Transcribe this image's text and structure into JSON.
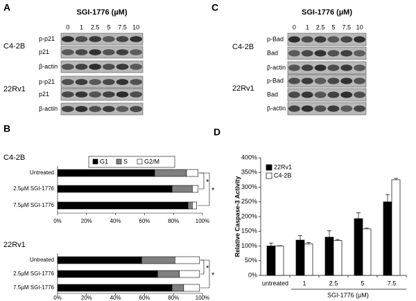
{
  "panel_labels": [
    "A",
    "B",
    "C",
    "D"
  ],
  "blots": [
    {
      "title": "SGI-1776 (µM)",
      "doses": [
        "0",
        "1",
        "2.5",
        "5",
        "7.5",
        "10"
      ],
      "groups": [
        {
          "cell_line": "C4-2B",
          "rows": [
            "p-p21",
            "p21",
            "β-actin"
          ]
        },
        {
          "cell_line": "22Rv1",
          "rows": [
            "p-p21",
            "p21",
            "β-actin"
          ]
        }
      ]
    },
    {
      "title": "SGI-1776 (µM)",
      "doses": [
        "0",
        "1",
        "2.5",
        "5",
        "7.5",
        "10"
      ],
      "groups": [
        {
          "cell_line": "C4-2B",
          "rows": [
            "p-Bad",
            "Bad",
            "β-actin"
          ]
        },
        {
          "cell_line": "22Rv1",
          "rows": [
            "p-Bad",
            "Bad",
            "β-actin"
          ]
        }
      ]
    }
  ],
  "chart_data": [
    {
      "type": "stacked_hbar",
      "legend": "top",
      "xlim": [
        0,
        100
      ],
      "xticks": [
        {
          "value": 0,
          "label": "0%"
        },
        {
          "value": 20,
          "label": "20%"
        },
        {
          "value": 40,
          "label": "40%"
        },
        {
          "value": 60,
          "label": "60%"
        },
        {
          "value": 80,
          "label": "80%"
        },
        {
          "value": 100,
          "label": "100%"
        }
      ],
      "series": [
        {
          "name": "G1",
          "color": "#000000"
        },
        {
          "name": "S",
          "color": "#808080"
        },
        {
          "name": "G2/M",
          "color": "#ffffff"
        }
      ],
      "groups": [
        {
          "title": "C4-2B",
          "categories": [
            "Untreated",
            "2.5µM SGI-1776",
            "7.5µM SGI-1776"
          ],
          "values": [
            [
              67,
              22,
              8
            ],
            [
              79,
              14,
              4
            ],
            [
              90,
              3,
              3
            ]
          ],
          "annotations": [
            "*",
            "*"
          ]
        },
        {
          "title": "22Rv1",
          "categories": [
            "Untreated",
            "2.5µM SGI-1776",
            "7.5µM SGI-1776"
          ],
          "values": [
            [
              58,
              23,
              17
            ],
            [
              69,
              15,
              14
            ],
            [
              79,
              8,
              11
            ]
          ],
          "annotations": [
            "*",
            "*"
          ]
        }
      ]
    },
    {
      "type": "bar",
      "ylabel": "Relative Caspase-3 Activity",
      "xlabel": "SGI-1776 (µM)",
      "legend": "top-left",
      "categories": [
        "untreated",
        "1",
        "2.5",
        "5",
        "7.5"
      ],
      "series": [
        {
          "name": "22Rv1",
          "color": "#000000",
          "values": [
            100,
            120,
            130,
            193,
            250
          ],
          "errors": [
            10,
            15,
            22,
            20,
            25
          ]
        },
        {
          "name": "C4-2B",
          "color": "#ffffff",
          "values": [
            100,
            107,
            119,
            158,
            325
          ],
          "errors": [
            1,
            5,
            3,
            3,
            5
          ]
        }
      ],
      "ylim": [
        0,
        400
      ],
      "yticks": [
        {
          "value": 0,
          "label": "0%"
        },
        {
          "value": 50,
          "label": "50%"
        },
        {
          "value": 100,
          "label": "100%"
        },
        {
          "value": 150,
          "label": "150%"
        },
        {
          "value": 200,
          "label": "200%"
        },
        {
          "value": 250,
          "label": "250%"
        },
        {
          "value": 300,
          "label": "300%"
        },
        {
          "value": 350,
          "label": "350%"
        },
        {
          "value": 400,
          "label": "400%"
        }
      ]
    }
  ]
}
